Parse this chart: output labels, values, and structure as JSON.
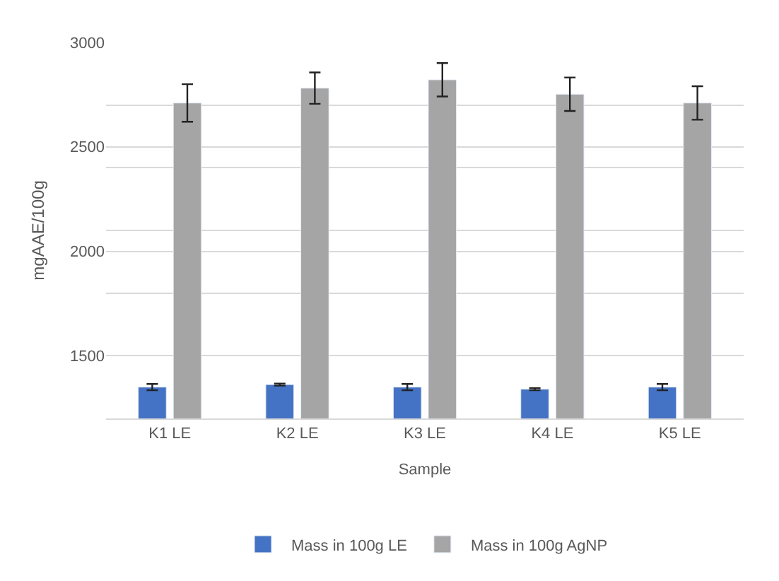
{
  "chart_data": {
    "type": "bar",
    "xlabel": "Sample",
    "ylabel": "mgAAE/100g",
    "categories": [
      "K1 LE",
      "K2 LE",
      "K3 LE",
      "K4 LE",
      "K5 LE"
    ],
    "series": [
      {
        "name": "Mass in 100g LE",
        "color": "#4472c4",
        "values": [
          1350,
          1362,
          1350,
          1340,
          1350
        ],
        "errors": [
          15,
          5,
          15,
          5,
          15
        ]
      },
      {
        "name": "Mass in 100g AgNP",
        "color": "#a5a5a5",
        "values": [
          2710,
          2781,
          2821,
          2752,
          2710
        ],
        "errors": [
          90,
          75,
          80,
          80,
          80
        ]
      }
    ],
    "ylim": [
      1200,
      3000
    ],
    "yticks": [
      {
        "value": 1200,
        "label": null
      },
      1500,
      {
        "value": 1800,
        "label": null
      },
      2000,
      {
        "value": 2100,
        "label": null
      },
      {
        "value": 2400,
        "label": null
      },
      2500,
      {
        "value": 2700,
        "label": null
      },
      3000
    ],
    "grid": "y",
    "legend": "bottom"
  }
}
